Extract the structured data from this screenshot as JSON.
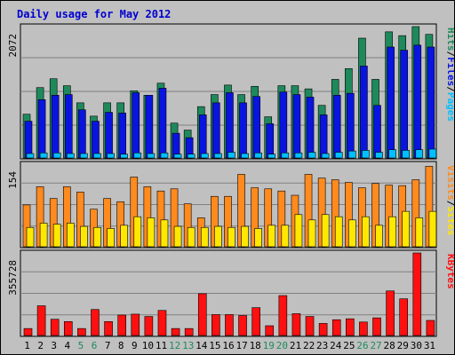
{
  "title": "Daily usage for May 2012",
  "colors": {
    "background": "#c0c0c0",
    "panel": "#c0c0c0",
    "gridline": "#808080",
    "hits": "#1e8a5c",
    "files": "#0a14e0",
    "pages": "#00c0ff",
    "visits": "#ff8a1e",
    "sites": "#ffe800",
    "kbytes": "#ff1010",
    "weekday_label": "#000000",
    "weekend_label": "#1e8a5c",
    "label_sep": "#000000"
  },
  "chart_data": [
    {
      "type": "bar",
      "panel": "hits-files-pages",
      "max_label": "2072",
      "ylim": [
        0,
        2072
      ],
      "legend": [
        {
          "name": "Pages",
          "color": "#00c0ff"
        },
        {
          "name": "Files",
          "color": "#0a14e0"
        },
        {
          "name": "Hits",
          "color": "#1e8a5c"
        }
      ],
      "categories": [
        "1",
        "2",
        "3",
        "4",
        "5",
        "6",
        "7",
        "8",
        "9",
        "10",
        "11",
        "12",
        "13",
        "14",
        "15",
        "16",
        "17",
        "18",
        "19",
        "20",
        "21",
        "22",
        "23",
        "24",
        "25",
        "26",
        "27",
        "28",
        "29",
        "30",
        "31"
      ],
      "series": [
        {
          "name": "Hits",
          "values": [
            690,
            1110,
            1250,
            1140,
            870,
            660,
            870,
            870,
            1060,
            990,
            1180,
            550,
            440,
            810,
            1000,
            1150,
            1000,
            1130,
            650,
            1140,
            1140,
            1090,
            830,
            1240,
            1410,
            1890,
            1240,
            1990,
            1930,
            2072,
            1950
          ]
        },
        {
          "name": "Files",
          "values": [
            580,
            920,
            990,
            1000,
            760,
            580,
            720,
            710,
            1030,
            990,
            1100,
            390,
            320,
            680,
            870,
            1030,
            870,
            970,
            540,
            1040,
            1000,
            960,
            680,
            990,
            1020,
            1450,
            830,
            1750,
            1700,
            1780,
            1750
          ]
        },
        {
          "name": "Pages",
          "values": [
            70,
            80,
            80,
            70,
            70,
            70,
            70,
            60,
            80,
            70,
            80,
            60,
            60,
            70,
            70,
            90,
            70,
            80,
            60,
            80,
            80,
            90,
            70,
            90,
            110,
            120,
            90,
            130,
            120,
            130,
            140
          ]
        }
      ]
    },
    {
      "type": "bar",
      "panel": "visits-sites",
      "max_label": "154",
      "ylim": [
        0,
        154
      ],
      "legend": [
        {
          "name": "Sites",
          "color": "#ffe800"
        },
        {
          "name": "Visits",
          "color": "#ff8a1e"
        }
      ],
      "categories": [
        "1",
        "2",
        "3",
        "4",
        "5",
        "6",
        "7",
        "8",
        "9",
        "10",
        "11",
        "12",
        "13",
        "14",
        "15",
        "16",
        "17",
        "18",
        "19",
        "20",
        "21",
        "22",
        "23",
        "24",
        "25",
        "26",
        "27",
        "28",
        "29",
        "30",
        "31"
      ],
      "series": [
        {
          "name": "Visits",
          "values": [
            78,
            112,
            90,
            112,
            102,
            70,
            90,
            84,
            130,
            112,
            104,
            108,
            80,
            54,
            94,
            94,
            135,
            110,
            108,
            104,
            96,
            135,
            128,
            125,
            120,
            110,
            118,
            115,
            114,
            125,
            150
          ]
        },
        {
          "name": "Sites",
          "values": [
            36,
            44,
            42,
            44,
            38,
            36,
            34,
            40,
            56,
            54,
            50,
            38,
            36,
            36,
            38,
            36,
            38,
            34,
            40,
            40,
            60,
            50,
            60,
            56,
            50,
            56,
            40,
            56,
            66,
            54,
            66
          ]
        }
      ]
    },
    {
      "type": "bar",
      "panel": "kbytes",
      "max_label": "355728",
      "ylim": [
        0,
        355728
      ],
      "legend": [
        {
          "name": "KBytes",
          "color": "#ff1010"
        }
      ],
      "categories": [
        "1",
        "2",
        "3",
        "4",
        "5",
        "6",
        "7",
        "8",
        "9",
        "10",
        "11",
        "12",
        "13",
        "14",
        "15",
        "16",
        "17",
        "18",
        "19",
        "20",
        "21",
        "22",
        "23",
        "24",
        "25",
        "26",
        "27",
        "28",
        "29",
        "30",
        "31"
      ],
      "series": [
        {
          "name": "KBytes",
          "values": [
            30000,
            128000,
            70000,
            60000,
            30000,
            112000,
            60000,
            88000,
            92000,
            82000,
            108000,
            30000,
            30000,
            180000,
            90000,
            90000,
            86000,
            120000,
            42000,
            172000,
            94000,
            82000,
            52000,
            68000,
            72000,
            58000,
            76000,
            192000,
            158000,
            355728,
            65000
          ]
        }
      ]
    }
  ],
  "days": [
    {
      "label": "1",
      "weekend": false
    },
    {
      "label": "2",
      "weekend": false
    },
    {
      "label": "3",
      "weekend": false
    },
    {
      "label": "4",
      "weekend": false
    },
    {
      "label": "5",
      "weekend": true
    },
    {
      "label": "6",
      "weekend": true
    },
    {
      "label": "7",
      "weekend": false
    },
    {
      "label": "8",
      "weekend": false
    },
    {
      "label": "9",
      "weekend": false
    },
    {
      "label": "10",
      "weekend": false
    },
    {
      "label": "11",
      "weekend": false
    },
    {
      "label": "12",
      "weekend": true
    },
    {
      "label": "13",
      "weekend": true
    },
    {
      "label": "14",
      "weekend": false
    },
    {
      "label": "15",
      "weekend": false
    },
    {
      "label": "16",
      "weekend": false
    },
    {
      "label": "17",
      "weekend": false
    },
    {
      "label": "18",
      "weekend": false
    },
    {
      "label": "19",
      "weekend": true
    },
    {
      "label": "20",
      "weekend": true
    },
    {
      "label": "21",
      "weekend": false
    },
    {
      "label": "22",
      "weekend": false
    },
    {
      "label": "23",
      "weekend": false
    },
    {
      "label": "24",
      "weekend": false
    },
    {
      "label": "25",
      "weekend": false
    },
    {
      "label": "26",
      "weekend": true
    },
    {
      "label": "27",
      "weekend": true
    },
    {
      "label": "28",
      "weekend": false
    },
    {
      "label": "29",
      "weekend": false
    },
    {
      "label": "30",
      "weekend": false
    },
    {
      "label": "31",
      "weekend": false
    }
  ],
  "separator": "/"
}
